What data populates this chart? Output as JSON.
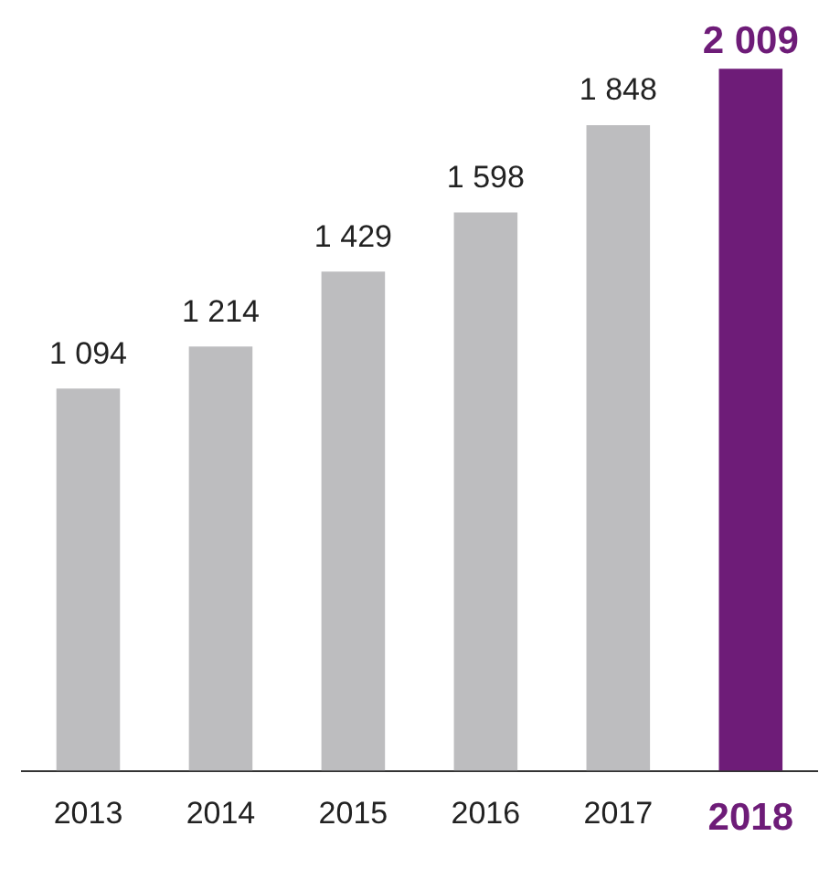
{
  "chart_data": {
    "type": "bar",
    "categories": [
      "2013",
      "2014",
      "2015",
      "2016",
      "2017",
      "2018"
    ],
    "values": [
      1094,
      1214,
      1429,
      1598,
      1848,
      2009
    ],
    "colors": [
      "#bdbdbf",
      "#bdbdbf",
      "#bdbdbf",
      "#bdbdbf",
      "#bdbdbf",
      "#6e1c78"
    ],
    "value_labels": [
      "1 094",
      "1 214",
      "1 429",
      "1 598",
      "1 848",
      "2 009"
    ]
  }
}
